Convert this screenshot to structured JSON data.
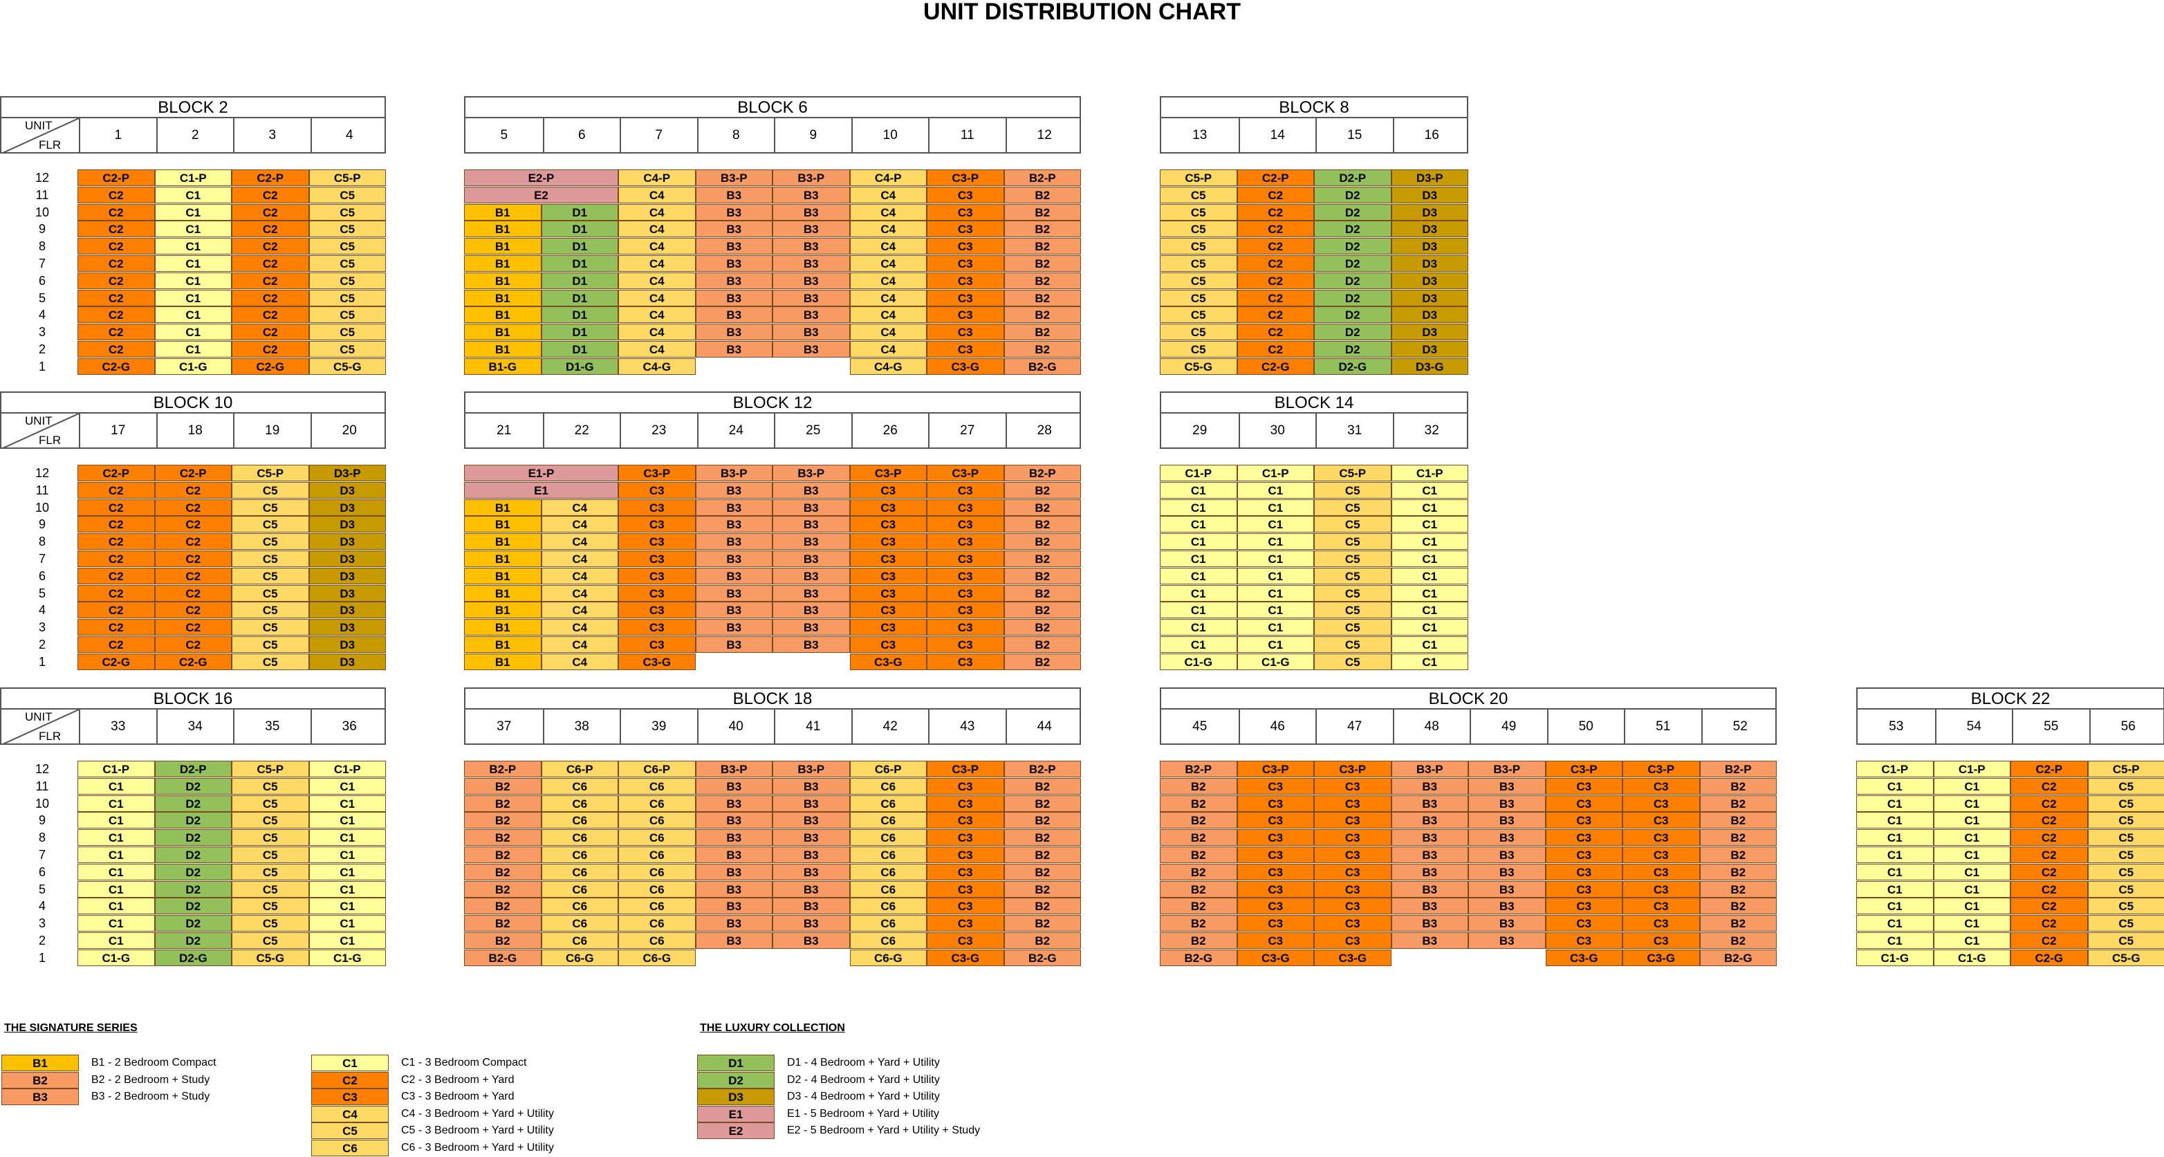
{
  "title": "UNIT DISTRIBUTION CHART",
  "header_labels": {
    "unit": "UNIT",
    "flr": "FLR"
  },
  "floors": [
    "12",
    "11",
    "10",
    "9",
    "8",
    "7",
    "6",
    "5",
    "4",
    "3",
    "2",
    "1"
  ],
  "colors": {
    "B1": "#ffc000",
    "B2": "#f79a64",
    "B3": "#f79a64",
    "C1": "#ffff99",
    "C2": "#ff8000",
    "C3": "#ff8000",
    "C4": "#ffd966",
    "C5": "#ffd966",
    "C6": "#ffd966",
    "D1": "#93c05a",
    "D2": "#93c05a",
    "D3": "#c79a00",
    "E1": "#de9a9a",
    "E2": "#de9a9a"
  },
  "chart_data": {
    "type": "table",
    "title": "UNIT DISTRIBUTION CHART",
    "blocks": [
      {
        "name": "BLOCK  2",
        "units": [
          "1",
          "2",
          "3",
          "4"
        ],
        "grid": [
          [
            "C2-P",
            "C1-P",
            "C2-P",
            "C5-P"
          ],
          [
            "C2",
            "C1",
            "C2",
            "C5"
          ],
          [
            "C2",
            "C1",
            "C2",
            "C5"
          ],
          [
            "C2",
            "C1",
            "C2",
            "C5"
          ],
          [
            "C2",
            "C1",
            "C2",
            "C5"
          ],
          [
            "C2",
            "C1",
            "C2",
            "C5"
          ],
          [
            "C2",
            "C1",
            "C2",
            "C5"
          ],
          [
            "C2",
            "C1",
            "C2",
            "C5"
          ],
          [
            "C2",
            "C1",
            "C2",
            "C5"
          ],
          [
            "C2",
            "C1",
            "C2",
            "C5"
          ],
          [
            "C2",
            "C1",
            "C2",
            "C5"
          ],
          [
            "C2-G",
            "C1-G",
            "C2-G",
            "C5-G"
          ]
        ]
      },
      {
        "name": "BLOCK  6",
        "units": [
          "5",
          "6",
          "7",
          "8",
          "9",
          "10",
          "11",
          "12"
        ],
        "grid": [
          [
            "E2-P*",
            "",
            "C4-P",
            "B3-P",
            "B3-P",
            "C4-P",
            "C3-P",
            "B2-P"
          ],
          [
            "E2*",
            "",
            "C4",
            "B3",
            "B3",
            "C4",
            "C3",
            "B2"
          ],
          [
            "B1",
            "D1",
            "C4",
            "B3",
            "B3",
            "C4",
            "C3",
            "B2"
          ],
          [
            "B1",
            "D1",
            "C4",
            "B3",
            "B3",
            "C4",
            "C3",
            "B2"
          ],
          [
            "B1",
            "D1",
            "C4",
            "B3",
            "B3",
            "C4",
            "C3",
            "B2"
          ],
          [
            "B1",
            "D1",
            "C4",
            "B3",
            "B3",
            "C4",
            "C3",
            "B2"
          ],
          [
            "B1",
            "D1",
            "C4",
            "B3",
            "B3",
            "C4",
            "C3",
            "B2"
          ],
          [
            "B1",
            "D1",
            "C4",
            "B3",
            "B3",
            "C4",
            "C3",
            "B2"
          ],
          [
            "B1",
            "D1",
            "C4",
            "B3",
            "B3",
            "C4",
            "C3",
            "B2"
          ],
          [
            "B1",
            "D1",
            "C4",
            "B3",
            "B3",
            "C4",
            "C3",
            "B2"
          ],
          [
            "B1",
            "D1",
            "C4",
            "B3",
            "B3",
            "C4",
            "C3",
            "B2"
          ],
          [
            "B1-G",
            "D1-G",
            "C4-G",
            "",
            "",
            "C4-G",
            "C3-G",
            "B2-G"
          ]
        ]
      },
      {
        "name": "BLOCK  8",
        "units": [
          "13",
          "14",
          "15",
          "16"
        ],
        "grid": [
          [
            "C5-P",
            "C2-P",
            "D2-P",
            "D3-P"
          ],
          [
            "C5",
            "C2",
            "D2",
            "D3"
          ],
          [
            "C5",
            "C2",
            "D2",
            "D3"
          ],
          [
            "C5",
            "C2",
            "D2",
            "D3"
          ],
          [
            "C5",
            "C2",
            "D2",
            "D3"
          ],
          [
            "C5",
            "C2",
            "D2",
            "D3"
          ],
          [
            "C5",
            "C2",
            "D2",
            "D3"
          ],
          [
            "C5",
            "C2",
            "D2",
            "D3"
          ],
          [
            "C5",
            "C2",
            "D2",
            "D3"
          ],
          [
            "C5",
            "C2",
            "D2",
            "D3"
          ],
          [
            "C5",
            "C2",
            "D2",
            "D3"
          ],
          [
            "C5-G",
            "C2-G",
            "D2-G",
            "D3-G"
          ]
        ]
      },
      {
        "name": "BLOCK  10",
        "units": [
          "17",
          "18",
          "19",
          "20"
        ],
        "grid": [
          [
            "C2-P",
            "C2-P",
            "C5-P",
            "D3-P"
          ],
          [
            "C2",
            "C2",
            "C5",
            "D3"
          ],
          [
            "C2",
            "C2",
            "C5",
            "D3"
          ],
          [
            "C2",
            "C2",
            "C5",
            "D3"
          ],
          [
            "C2",
            "C2",
            "C5",
            "D3"
          ],
          [
            "C2",
            "C2",
            "C5",
            "D3"
          ],
          [
            "C2",
            "C2",
            "C5",
            "D3"
          ],
          [
            "C2",
            "C2",
            "C5",
            "D3"
          ],
          [
            "C2",
            "C2",
            "C5",
            "D3"
          ],
          [
            "C2",
            "C2",
            "C5",
            "D3"
          ],
          [
            "C2",
            "C2",
            "C5",
            "D3"
          ],
          [
            "C2-G",
            "C2-G",
            "C5",
            "D3"
          ]
        ]
      },
      {
        "name": "BLOCK  12",
        "units": [
          "21",
          "22",
          "23",
          "24",
          "25",
          "26",
          "27",
          "28"
        ],
        "grid": [
          [
            "E1-P*",
            "",
            "C3-P",
            "B3-P",
            "B3-P",
            "C3-P",
            "C3-P",
            "B2-P"
          ],
          [
            "E1*",
            "",
            "C3",
            "B3",
            "B3",
            "C3",
            "C3",
            "B2"
          ],
          [
            "B1",
            "C4",
            "C3",
            "B3",
            "B3",
            "C3",
            "C3",
            "B2"
          ],
          [
            "B1",
            "C4",
            "C3",
            "B3",
            "B3",
            "C3",
            "C3",
            "B2"
          ],
          [
            "B1",
            "C4",
            "C3",
            "B3",
            "B3",
            "C3",
            "C3",
            "B2"
          ],
          [
            "B1",
            "C4",
            "C3",
            "B3",
            "B3",
            "C3",
            "C3",
            "B2"
          ],
          [
            "B1",
            "C4",
            "C3",
            "B3",
            "B3",
            "C3",
            "C3",
            "B2"
          ],
          [
            "B1",
            "C4",
            "C3",
            "B3",
            "B3",
            "C3",
            "C3",
            "B2"
          ],
          [
            "B1",
            "C4",
            "C3",
            "B3",
            "B3",
            "C3",
            "C3",
            "B2"
          ],
          [
            "B1",
            "C4",
            "C3",
            "B3",
            "B3",
            "C3",
            "C3",
            "B2"
          ],
          [
            "B1",
            "C4",
            "C3",
            "B3",
            "B3",
            "C3",
            "C3",
            "B2"
          ],
          [
            "B1",
            "C4",
            "C3-G",
            "",
            "",
            "C3-G",
            "C3",
            "B2"
          ]
        ]
      },
      {
        "name": "BLOCK  14",
        "units": [
          "29",
          "30",
          "31",
          "32"
        ],
        "grid": [
          [
            "C1-P",
            "C1-P",
            "C5-P",
            "C1-P"
          ],
          [
            "C1",
            "C1",
            "C5",
            "C1"
          ],
          [
            "C1",
            "C1",
            "C5",
            "C1"
          ],
          [
            "C1",
            "C1",
            "C5",
            "C1"
          ],
          [
            "C1",
            "C1",
            "C5",
            "C1"
          ],
          [
            "C1",
            "C1",
            "C5",
            "C1"
          ],
          [
            "C1",
            "C1",
            "C5",
            "C1"
          ],
          [
            "C1",
            "C1",
            "C5",
            "C1"
          ],
          [
            "C1",
            "C1",
            "C5",
            "C1"
          ],
          [
            "C1",
            "C1",
            "C5",
            "C1"
          ],
          [
            "C1",
            "C1",
            "C5",
            "C1"
          ],
          [
            "C1-G",
            "C1-G",
            "C5",
            "C1"
          ]
        ]
      },
      {
        "name": "BLOCK  16",
        "units": [
          "33",
          "34",
          "35",
          "36"
        ],
        "grid": [
          [
            "C1-P",
            "D2-P",
            "C5-P",
            "C1-P"
          ],
          [
            "C1",
            "D2",
            "C5",
            "C1"
          ],
          [
            "C1",
            "D2",
            "C5",
            "C1"
          ],
          [
            "C1",
            "D2",
            "C5",
            "C1"
          ],
          [
            "C1",
            "D2",
            "C5",
            "C1"
          ],
          [
            "C1",
            "D2",
            "C5",
            "C1"
          ],
          [
            "C1",
            "D2",
            "C5",
            "C1"
          ],
          [
            "C1",
            "D2",
            "C5",
            "C1"
          ],
          [
            "C1",
            "D2",
            "C5",
            "C1"
          ],
          [
            "C1",
            "D2",
            "C5",
            "C1"
          ],
          [
            "C1",
            "D2",
            "C5",
            "C1"
          ],
          [
            "C1-G",
            "D2-G",
            "C5-G",
            "C1-G"
          ]
        ]
      },
      {
        "name": "BLOCK  18",
        "units": [
          "37",
          "38",
          "39",
          "40",
          "41",
          "42",
          "43",
          "44"
        ],
        "grid": [
          [
            "B2-P",
            "C6-P",
            "C6-P",
            "B3-P",
            "B3-P",
            "C6-P",
            "C3-P",
            "B2-P"
          ],
          [
            "B2",
            "C6",
            "C6",
            "B3",
            "B3",
            "C6",
            "C3",
            "B2"
          ],
          [
            "B2",
            "C6",
            "C6",
            "B3",
            "B3",
            "C6",
            "C3",
            "B2"
          ],
          [
            "B2",
            "C6",
            "C6",
            "B3",
            "B3",
            "C6",
            "C3",
            "B2"
          ],
          [
            "B2",
            "C6",
            "C6",
            "B3",
            "B3",
            "C6",
            "C3",
            "B2"
          ],
          [
            "B2",
            "C6",
            "C6",
            "B3",
            "B3",
            "C6",
            "C3",
            "B2"
          ],
          [
            "B2",
            "C6",
            "C6",
            "B3",
            "B3",
            "C6",
            "C3",
            "B2"
          ],
          [
            "B2",
            "C6",
            "C6",
            "B3",
            "B3",
            "C6",
            "C3",
            "B2"
          ],
          [
            "B2",
            "C6",
            "C6",
            "B3",
            "B3",
            "C6",
            "C3",
            "B2"
          ],
          [
            "B2",
            "C6",
            "C6",
            "B3",
            "B3",
            "C6",
            "C3",
            "B2"
          ],
          [
            "B2",
            "C6",
            "C6",
            "B3",
            "B3",
            "C6",
            "C3",
            "B2"
          ],
          [
            "B2-G",
            "C6-G",
            "C6-G",
            "",
            "",
            "C6-G",
            "C3-G",
            "B2-G"
          ]
        ]
      },
      {
        "name": "BLOCK  20",
        "units": [
          "45",
          "46",
          "47",
          "48",
          "49",
          "50",
          "51",
          "52"
        ],
        "grid": [
          [
            "B2-P",
            "C3-P",
            "C3-P",
            "B3-P",
            "B3-P",
            "C3-P",
            "C3-P",
            "B2-P"
          ],
          [
            "B2",
            "C3",
            "C3",
            "B3",
            "B3",
            "C3",
            "C3",
            "B2"
          ],
          [
            "B2",
            "C3",
            "C3",
            "B3",
            "B3",
            "C3",
            "C3",
            "B2"
          ],
          [
            "B2",
            "C3",
            "C3",
            "B3",
            "B3",
            "C3",
            "C3",
            "B2"
          ],
          [
            "B2",
            "C3",
            "C3",
            "B3",
            "B3",
            "C3",
            "C3",
            "B2"
          ],
          [
            "B2",
            "C3",
            "C3",
            "B3",
            "B3",
            "C3",
            "C3",
            "B2"
          ],
          [
            "B2",
            "C3",
            "C3",
            "B3",
            "B3",
            "C3",
            "C3",
            "B2"
          ],
          [
            "B2",
            "C3",
            "C3",
            "B3",
            "B3",
            "C3",
            "C3",
            "B2"
          ],
          [
            "B2",
            "C3",
            "C3",
            "B3",
            "B3",
            "C3",
            "C3",
            "B2"
          ],
          [
            "B2",
            "C3",
            "C3",
            "B3",
            "B3",
            "C3",
            "C3",
            "B2"
          ],
          [
            "B2",
            "C3",
            "C3",
            "B3",
            "B3",
            "C3",
            "C3",
            "B2"
          ],
          [
            "B2-G",
            "C3-G",
            "C3-G",
            "",
            "",
            "C3-G",
            "C3-G",
            "B2-G"
          ]
        ]
      },
      {
        "name": "BLOCK  22",
        "units": [
          "53",
          "54",
          "55",
          "56"
        ],
        "grid": [
          [
            "C1-P",
            "C1-P",
            "C2-P",
            "C5-P"
          ],
          [
            "C1",
            "C1",
            "C2",
            "C5"
          ],
          [
            "C1",
            "C1",
            "C2",
            "C5"
          ],
          [
            "C1",
            "C1",
            "C2",
            "C5"
          ],
          [
            "C1",
            "C1",
            "C2",
            "C5"
          ],
          [
            "C1",
            "C1",
            "C2",
            "C5"
          ],
          [
            "C1",
            "C1",
            "C2",
            "C5"
          ],
          [
            "C1",
            "C1",
            "C2",
            "C5"
          ],
          [
            "C1",
            "C1",
            "C2",
            "C5"
          ],
          [
            "C1",
            "C1",
            "C2",
            "C5"
          ],
          [
            "C1",
            "C1",
            "C2",
            "C5"
          ],
          [
            "C1-G",
            "C1-G",
            "C2-G",
            "C5-G"
          ]
        ]
      }
    ]
  },
  "legend": {
    "signature": {
      "heading": "THE SIGNATURE SERIES",
      "groups": [
        [
          {
            "code": "B1",
            "desc": "B1 - 2 Bedroom Compact"
          },
          {
            "code": "B2",
            "desc": "B2 - 2 Bedroom + Study"
          },
          {
            "code": "B3",
            "desc": "B3 - 2 Bedroom + Study"
          }
        ],
        [
          {
            "code": "C1",
            "desc": "C1 - 3 Bedroom Compact"
          },
          {
            "code": "C2",
            "desc": "C2 - 3 Bedroom + Yard"
          },
          {
            "code": "C3",
            "desc": "C3 - 3 Bedroom + Yard"
          },
          {
            "code": "C4",
            "desc": "C4 - 3 Bedroom + Yard + Utility"
          },
          {
            "code": "C5",
            "desc": "C5 - 3 Bedroom + Yard + Utility"
          },
          {
            "code": "C6",
            "desc": "C6 - 3 Bedroom + Yard + Utility"
          }
        ]
      ]
    },
    "luxury": {
      "heading": "THE LUXURY COLLECTION",
      "items": [
        {
          "code": "D1",
          "desc": "D1 - 4 Bedroom + Yard + Utility"
        },
        {
          "code": "D2",
          "desc": "D2 - 4 Bedroom + Yard + Utility"
        },
        {
          "code": "D3",
          "desc": "D3 - 4 Bedroom + Yard + Utility"
        },
        {
          "code": "E1",
          "desc": "E1 - 5 Bedroom + Yard + Utility"
        },
        {
          "code": "E2",
          "desc": "E2 - 5 Bedroom + Yard + Utility + Study"
        }
      ]
    }
  }
}
